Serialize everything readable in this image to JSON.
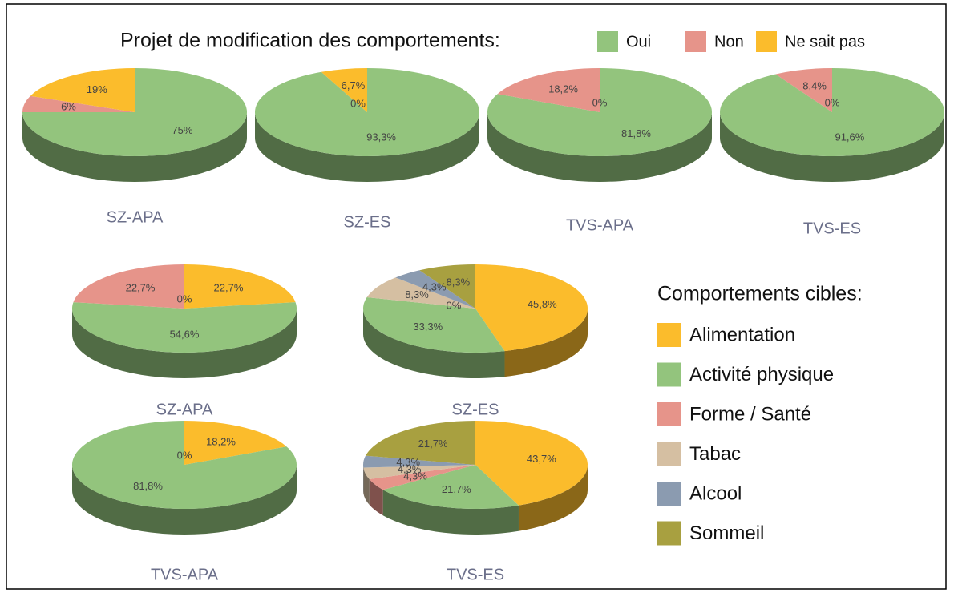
{
  "legends": [
    {
      "title": "Projet de modification des comportements:",
      "categories": [
        "Oui",
        "Non",
        "Ne sait pas"
      ],
      "colors": [
        "#93c47d",
        "#e6948a",
        "#fbbc2c"
      ]
    },
    {
      "title": "Comportements cibles:",
      "categories": [
        "Alimentation",
        "Activité physique",
        "Forme / Santé",
        "Tabac",
        "Alcool",
        "Sommeil"
      ],
      "colors": [
        "#fbbc2c",
        "#93c47d",
        "#e6948a",
        "#d5bfa2",
        "#8b9bb0",
        "#a8a040"
      ]
    }
  ],
  "chart_data": [
    {
      "type": "pie",
      "title": "SZ-APA",
      "legend": 0,
      "values": [
        75,
        6,
        19
      ],
      "value_labels": [
        "75%",
        "6%",
        "19%"
      ]
    },
    {
      "type": "pie",
      "title": "SZ-ES",
      "legend": 0,
      "values": [
        93.3,
        0,
        6.7
      ],
      "value_labels": [
        "93,3%",
        "0%",
        "6,7%"
      ]
    },
    {
      "type": "pie",
      "title": "TVS-APA",
      "legend": 0,
      "values": [
        81.8,
        18.2,
        0
      ],
      "value_labels": [
        "81,8%",
        "18,2%",
        "0%"
      ]
    },
    {
      "type": "pie",
      "title": "TVS-ES",
      "legend": 0,
      "values": [
        91.6,
        8.4,
        0
      ],
      "value_labels": [
        "91,6%",
        "8,4%",
        "0%"
      ]
    },
    {
      "type": "pie",
      "title": "SZ-APA",
      "legend": 1,
      "values": [
        22.7,
        54.6,
        22.7,
        0,
        null,
        null
      ],
      "value_labels": [
        "22,7%",
        "54,6%",
        "22,7%",
        "0%",
        null,
        null
      ]
    },
    {
      "type": "pie",
      "title": "SZ-ES",
      "legend": 1,
      "values": [
        45.8,
        33.3,
        0,
        8.3,
        4.3,
        8.3
      ],
      "value_labels": [
        "45,8%",
        "33,3%",
        "0%",
        "8,3%",
        "4,3%",
        "8,3%"
      ]
    },
    {
      "type": "pie",
      "title": "TVS-APA",
      "legend": 1,
      "values": [
        18.2,
        81.8,
        0,
        null,
        null,
        null
      ],
      "value_labels": [
        "18,2%",
        "81,8%",
        "0%",
        null,
        null,
        null
      ]
    },
    {
      "type": "pie",
      "title": "TVS-ES",
      "legend": 1,
      "values": [
        43.7,
        21.7,
        4.3,
        4.3,
        4.3,
        21.7
      ],
      "value_labels": [
        "43,7%",
        "21,7%",
        "4,3%",
        "4,3%",
        "4,3%",
        "21,7%"
      ]
    }
  ]
}
